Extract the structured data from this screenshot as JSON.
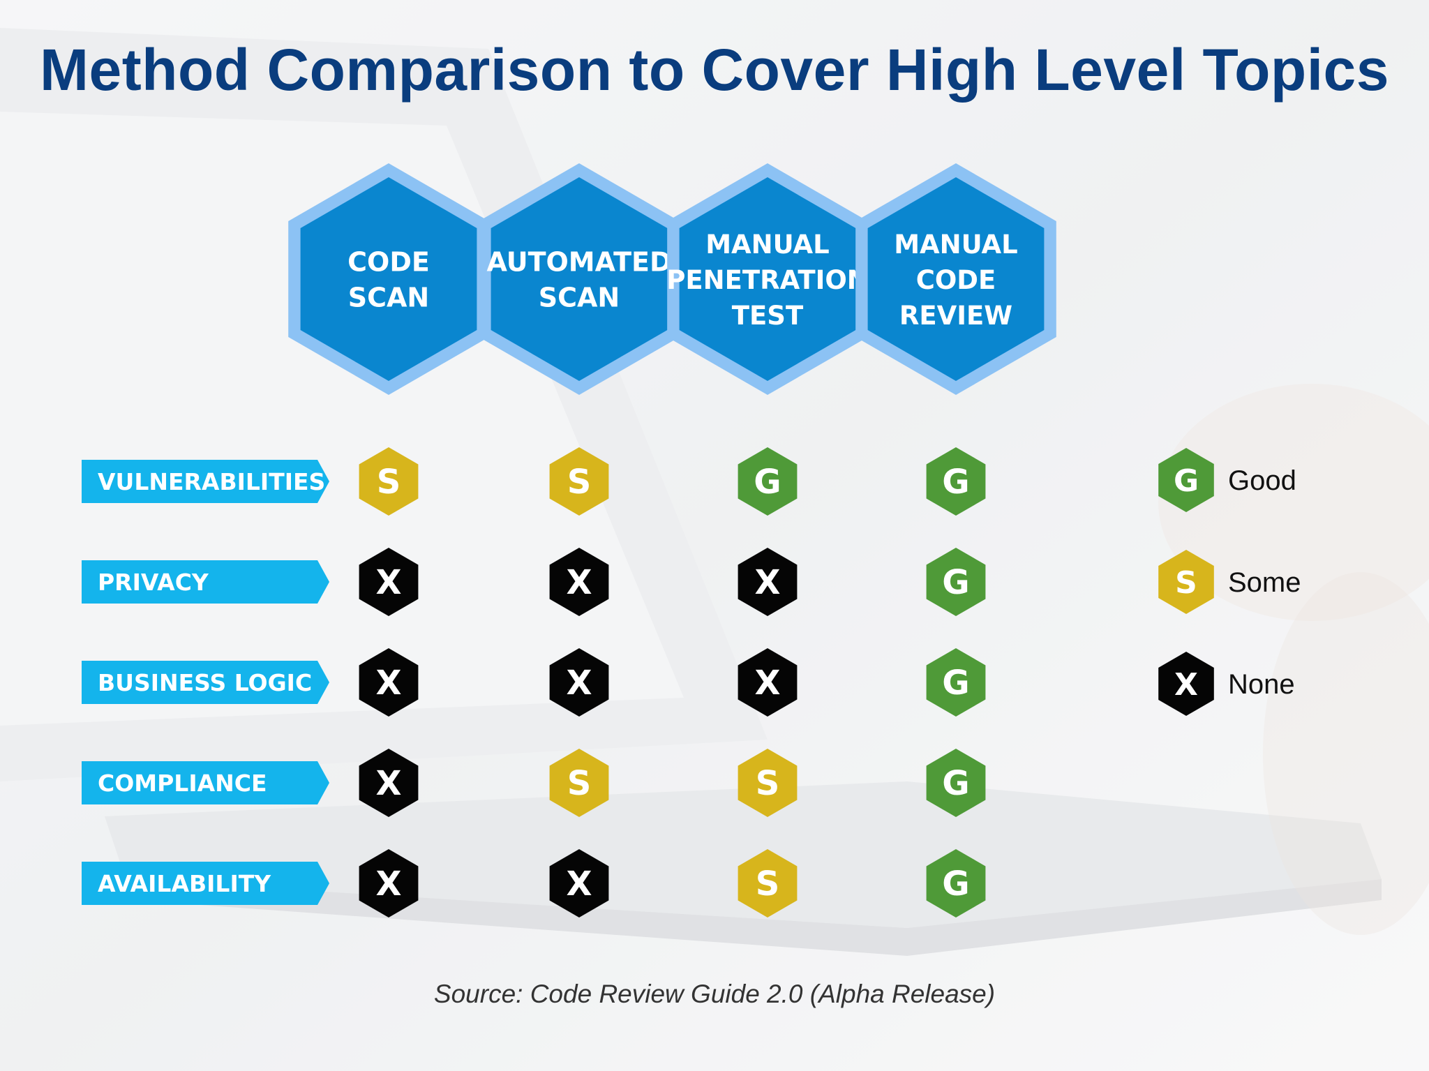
{
  "title": "Method Comparison to Cover High Level Topics",
  "methods": [
    {
      "lines": [
        "CODE",
        "SCAN"
      ]
    },
    {
      "lines": [
        "AUTOMATED",
        "SCAN"
      ]
    },
    {
      "lines": [
        "MANUAL",
        "PENETRATION",
        "TEST"
      ]
    },
    {
      "lines": [
        "MANUAL",
        "CODE",
        "REVIEW"
      ]
    }
  ],
  "topics": [
    {
      "label": "VULNERABILITIES",
      "ratings": [
        "S",
        "S",
        "G",
        "G"
      ]
    },
    {
      "label": "PRIVACY",
      "ratings": [
        "X",
        "X",
        "X",
        "G"
      ]
    },
    {
      "label": "BUSINESS LOGIC",
      "ratings": [
        "X",
        "X",
        "X",
        "G"
      ]
    },
    {
      "label": "COMPLIANCE",
      "ratings": [
        "X",
        "S",
        "S",
        "G"
      ]
    },
    {
      "label": "AVAILABILITY",
      "ratings": [
        "X",
        "X",
        "S",
        "G"
      ]
    }
  ],
  "legend": [
    {
      "mark": "G",
      "label": "Good"
    },
    {
      "mark": "S",
      "label": "Some"
    },
    {
      "mark": "X",
      "label": "None"
    }
  ],
  "colors": {
    "G": "#4f9a38",
    "S": "#d7b51c",
    "X": "#050505",
    "hex_header_fill": "#0a86cf",
    "hex_header_border": "#8cc2f4",
    "row_label_fill": "#14b4ec",
    "title": "#0a3d7e"
  },
  "icons": {
    "G": "good-hexagon-icon",
    "S": "some-hexagon-icon",
    "X": "none-hexagon-icon"
  },
  "source": "Source: Code Review Guide 2.0 (Alpha Release)"
}
